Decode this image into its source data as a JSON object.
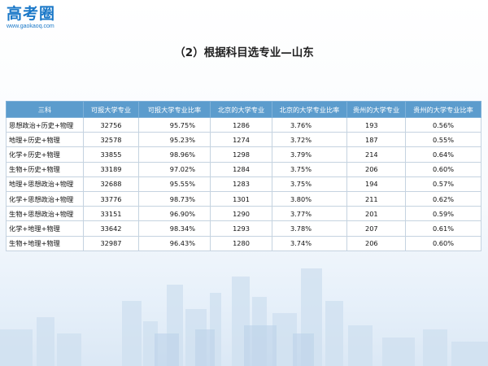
{
  "logo": {
    "name": "高考圈",
    "url": "www.gaokaoq.com"
  },
  "page": {
    "title": "（2）根据科目选专业—山东"
  },
  "table": {
    "headers": [
      "三科",
      "可报大学专业",
      "可报大学专业比率",
      "北京的大学专业",
      "北京的大学专业比率",
      "贵州的大学专业",
      "贵州的大学专业比率"
    ],
    "rows": [
      [
        "思想政治+历史+物理",
        "32756",
        "95.75%",
        "1286",
        "3.76%",
        "193",
        "0.56%"
      ],
      [
        "地理+历史+物理",
        "32578",
        "95.23%",
        "1274",
        "3.72%",
        "187",
        "0.55%"
      ],
      [
        "化学+历史+物理",
        "33855",
        "98.96%",
        "1298",
        "3.79%",
        "214",
        "0.64%"
      ],
      [
        "生物+历史+物理",
        "33189",
        "97.02%",
        "1284",
        "3.75%",
        "206",
        "0.60%"
      ],
      [
        "地理+思想政治+物理",
        "32688",
        "95.55%",
        "1283",
        "3.75%",
        "194",
        "0.57%"
      ],
      [
        "化学+思想政治+物理",
        "33776",
        "98.73%",
        "1301",
        "3.80%",
        "211",
        "0.62%"
      ],
      [
        "生物+思想政治+物理",
        "33151",
        "96.90%",
        "1290",
        "3.77%",
        "201",
        "0.59%"
      ],
      [
        "化学+地理+物理",
        "33642",
        "98.34%",
        "1293",
        "3.78%",
        "207",
        "0.61%"
      ],
      [
        "生物+地理+物理",
        "32987",
        "96.43%",
        "1280",
        "3.74%",
        "206",
        "0.60%"
      ]
    ]
  },
  "colors": {
    "header_bg": "#5c9ccd",
    "logo": "#1a78c8"
  }
}
